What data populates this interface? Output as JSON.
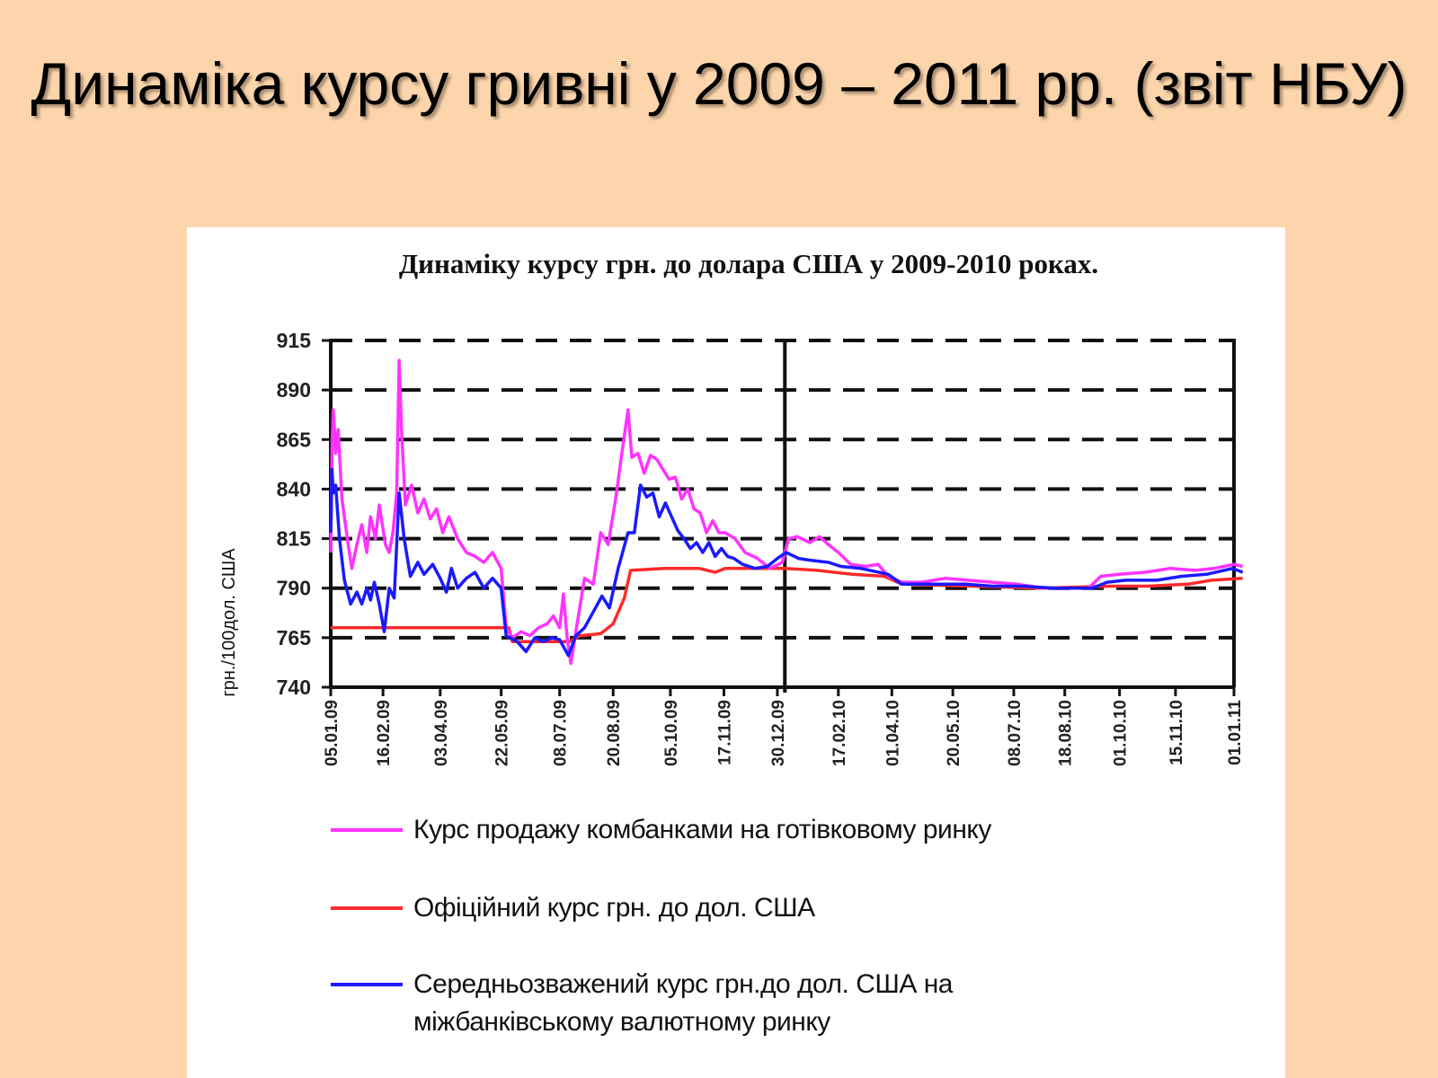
{
  "slide": {
    "title": "Динаміка курсу гривні у 2009 – 2011 рр. (звіт НБУ)"
  },
  "colors": {
    "background": "#fdd5ac",
    "panel": "#ffffff",
    "cash": "#ff33ff",
    "official": "#ff2a2a",
    "interbank": "#1a1aff"
  },
  "chart_data": {
    "type": "line",
    "title": "Динаміку курсу грн. до долара США у 2009-2010 роках.",
    "ylabel": "грн./100дол. США",
    "xlabel": "",
    "ylim": [
      740,
      915
    ],
    "yticks": [
      740,
      765,
      790,
      815,
      840,
      865,
      890,
      915
    ],
    "x_tick_labels": [
      "05.01.09",
      "16.02.09",
      "03.04.09",
      "22.05.09",
      "08.07.09",
      "20.08.09",
      "05.10.09",
      "17.11.09",
      "30.12.09",
      "17.02.10",
      "01.04.10",
      "20.05.10",
      "08.07.10",
      "18.08.10",
      "01.10.10",
      "15.11.10",
      "01.01.11"
    ],
    "grid": "horizontal dashed",
    "legend_position": "bottom",
    "series": [
      {
        "name": "Курс продажу комбанками на готівковому ринку",
        "color": "#ff33ff",
        "values": [
          [
            "05.01.09",
            808
          ],
          [
            "06.01.09",
            860
          ],
          [
            "07.01.09",
            880
          ],
          [
            "09.01.09",
            858
          ],
          [
            "11.01.09",
            870
          ],
          [
            "14.01.09",
            835
          ],
          [
            "19.01.09",
            812
          ],
          [
            "22.01.09",
            800
          ],
          [
            "26.01.09",
            812
          ],
          [
            "30.01.09",
            822
          ],
          [
            "03.02.09",
            808
          ],
          [
            "06.02.09",
            826
          ],
          [
            "10.02.09",
            815
          ],
          [
            "13.02.09",
            832
          ],
          [
            "16.02.09",
            820
          ],
          [
            "18.02.09",
            812
          ],
          [
            "21.02.09",
            808
          ],
          [
            "24.02.09",
            818
          ],
          [
            "27.02.09",
            838
          ],
          [
            "01.03.09",
            905
          ],
          [
            "03.03.09",
            868
          ],
          [
            "06.03.09",
            832
          ],
          [
            "11.03.09",
            842
          ],
          [
            "16.03.09",
            828
          ],
          [
            "21.03.09",
            835
          ],
          [
            "26.03.09",
            825
          ],
          [
            "31.03.09",
            830
          ],
          [
            "05.04.09",
            818
          ],
          [
            "10.04.09",
            826
          ],
          [
            "17.04.09",
            815
          ],
          [
            "24.04.09",
            808
          ],
          [
            "01.05.09",
            806
          ],
          [
            "08.05.09",
            803
          ],
          [
            "15.05.09",
            808
          ],
          [
            "22.05.09",
            800
          ],
          [
            "26.05.09",
            770
          ],
          [
            "31.05.09",
            765
          ],
          [
            "07.06.09",
            768
          ],
          [
            "14.06.09",
            766
          ],
          [
            "21.06.09",
            770
          ],
          [
            "28.06.09",
            772
          ],
          [
            "03.07.09",
            776
          ],
          [
            "08.07.09",
            770
          ],
          [
            "11.07.09",
            787
          ],
          [
            "14.07.09",
            765
          ],
          [
            "17.07.09",
            752
          ],
          [
            "21.07.09",
            768
          ],
          [
            "28.07.09",
            795
          ],
          [
            "04.08.09",
            792
          ],
          [
            "10.08.09",
            818
          ],
          [
            "16.08.09",
            812
          ],
          [
            "22.08.09",
            835
          ],
          [
            "27.08.09",
            858
          ],
          [
            "01.09.09",
            880
          ],
          [
            "04.09.09",
            856
          ],
          [
            "09.09.09",
            858
          ],
          [
            "14.09.09",
            848
          ],
          [
            "19.09.09",
            857
          ],
          [
            "24.09.09",
            855
          ],
          [
            "29.09.09",
            850
          ],
          [
            "04.10.09",
            845
          ],
          [
            "09.10.09",
            846
          ],
          [
            "14.10.09",
            835
          ],
          [
            "19.10.09",
            840
          ],
          [
            "24.10.09",
            830
          ],
          [
            "29.10.09",
            828
          ],
          [
            "03.11.09",
            818
          ],
          [
            "08.11.09",
            824
          ],
          [
            "13.11.09",
            818
          ],
          [
            "18.11.09",
            818
          ],
          [
            "26.11.09",
            815
          ],
          [
            "04.12.09",
            808
          ],
          [
            "14.12.09",
            805
          ],
          [
            "24.12.09",
            800
          ],
          [
            "03.01.10",
            803
          ],
          [
            "08.01.10",
            815
          ],
          [
            "15.01.10",
            816
          ],
          [
            "25.01.10",
            813
          ],
          [
            "02.02.10",
            816
          ],
          [
            "09.02.10",
            812
          ],
          [
            "17.02.10",
            808
          ],
          [
            "27.02.10",
            802
          ],
          [
            "11.03.10",
            801
          ],
          [
            "21.03.10",
            802
          ],
          [
            "29.03.10",
            796
          ],
          [
            "09.04.10",
            793
          ],
          [
            "25.04.10",
            793
          ],
          [
            "14.05.10",
            795
          ],
          [
            "01.06.10",
            794
          ],
          [
            "21.06.10",
            793
          ],
          [
            "11.07.10",
            792
          ],
          [
            "01.08.10",
            790
          ],
          [
            "22.08.10",
            790
          ],
          [
            "06.09.10",
            790
          ],
          [
            "16.09.10",
            796
          ],
          [
            "01.10.10",
            797
          ],
          [
            "21.10.10",
            798
          ],
          [
            "11.11.10",
            800
          ],
          [
            "01.12.10",
            799
          ],
          [
            "16.12.10",
            800
          ],
          [
            "01.01.11",
            802
          ],
          [
            "08.01.11",
            801
          ]
        ]
      },
      {
        "name": "Офіційний курс грн. до дол. США",
        "color": "#ff2a2a",
        "values": [
          [
            "05.01.09",
            770
          ],
          [
            "28.05.09",
            770
          ],
          [
            "31.05.09",
            763
          ],
          [
            "16.07.09",
            763
          ],
          [
            "24.07.09",
            766
          ],
          [
            "10.08.09",
            767
          ],
          [
            "20.08.09",
            772
          ],
          [
            "29.08.09",
            785
          ],
          [
            "03.09.09",
            799
          ],
          [
            "30.09.09",
            800
          ],
          [
            "28.10.09",
            800
          ],
          [
            "10.11.09",
            798
          ],
          [
            "18.11.09",
            800
          ],
          [
            "23.12.09",
            800
          ],
          [
            "05.01.10",
            800
          ],
          [
            "31.01.10",
            799
          ],
          [
            "28.02.10",
            797
          ],
          [
            "26.03.10",
            796
          ],
          [
            "09.04.10",
            792
          ],
          [
            "05.06.10",
            791
          ],
          [
            "29.07.10",
            790
          ],
          [
            "24.09.10",
            791
          ],
          [
            "23.10.10",
            791
          ],
          [
            "25.11.10",
            792
          ],
          [
            "14.12.10",
            794
          ],
          [
            "08.01.11",
            795
          ]
        ]
      },
      {
        "name": "Середньозважений курс грн.до  дол. США на міжбанківському валютному ринку",
        "color": "#1a1aff",
        "values": [
          [
            "05.01.09",
            818
          ],
          [
            "06.01.09",
            850
          ],
          [
            "07.01.09",
            838
          ],
          [
            "09.01.09",
            842
          ],
          [
            "12.01.09",
            815
          ],
          [
            "16.01.09",
            794
          ],
          [
            "21.01.09",
            782
          ],
          [
            "26.01.09",
            788
          ],
          [
            "30.01.09",
            782
          ],
          [
            "03.02.09",
            790
          ],
          [
            "06.02.09",
            784
          ],
          [
            "09.02.09",
            793
          ],
          [
            "13.02.09",
            782
          ],
          [
            "17.02.09",
            768
          ],
          [
            "21.02.09",
            790
          ],
          [
            "25.02.09",
            785
          ],
          [
            "01.03.09",
            838
          ],
          [
            "05.03.09",
            815
          ],
          [
            "10.03.09",
            796
          ],
          [
            "16.03.09",
            803
          ],
          [
            "21.03.09",
            797
          ],
          [
            "28.03.09",
            802
          ],
          [
            "03.04.09",
            795
          ],
          [
            "08.04.09",
            788
          ],
          [
            "12.04.09",
            800
          ],
          [
            "17.04.09",
            790
          ],
          [
            "24.04.09",
            795
          ],
          [
            "01.05.09",
            798
          ],
          [
            "08.05.09",
            790
          ],
          [
            "15.05.09",
            795
          ],
          [
            "22.05.09",
            790
          ],
          [
            "26.05.09",
            766
          ],
          [
            "04.06.09",
            763
          ],
          [
            "11.06.09",
            758
          ],
          [
            "18.06.09",
            765
          ],
          [
            "25.06.09",
            763
          ],
          [
            "02.07.09",
            765
          ],
          [
            "08.07.09",
            764
          ],
          [
            "15.07.09",
            756
          ],
          [
            "21.07.09",
            766
          ],
          [
            "28.07.09",
            770
          ],
          [
            "04.08.09",
            778
          ],
          [
            "11.08.09",
            786
          ],
          [
            "17.08.09",
            780
          ],
          [
            "24.08.09",
            800
          ],
          [
            "01.09.09",
            818
          ],
          [
            "06.09.09",
            818
          ],
          [
            "11.09.09",
            842
          ],
          [
            "16.09.09",
            836
          ],
          [
            "21.09.09",
            838
          ],
          [
            "26.09.09",
            826
          ],
          [
            "01.10.09",
            833
          ],
          [
            "06.10.09",
            826
          ],
          [
            "11.10.09",
            819
          ],
          [
            "16.10.09",
            815
          ],
          [
            "21.10.09",
            810
          ],
          [
            "26.10.09",
            813
          ],
          [
            "31.10.09",
            808
          ],
          [
            "05.11.09",
            813
          ],
          [
            "10.11.09",
            806
          ],
          [
            "15.11.09",
            810
          ],
          [
            "20.11.09",
            806
          ],
          [
            "25.11.09",
            805
          ],
          [
            "02.12.09",
            802
          ],
          [
            "12.12.09",
            800
          ],
          [
            "22.12.09",
            801
          ],
          [
            "30.12.09",
            805
          ],
          [
            "06.01.10",
            808
          ],
          [
            "16.01.10",
            805
          ],
          [
            "26.01.10",
            804
          ],
          [
            "09.02.10",
            803
          ],
          [
            "19.02.10",
            801
          ],
          [
            "07.03.10",
            800
          ],
          [
            "29.03.10",
            797
          ],
          [
            "09.04.10",
            792
          ],
          [
            "06.05.10",
            792
          ],
          [
            "30.05.10",
            792
          ],
          [
            "21.06.10",
            791
          ],
          [
            "15.07.10",
            791
          ],
          [
            "10.08.10",
            790
          ],
          [
            "09.09.10",
            790
          ],
          [
            "21.09.10",
            793
          ],
          [
            "06.10.10",
            794
          ],
          [
            "31.10.10",
            794
          ],
          [
            "20.11.10",
            796
          ],
          [
            "10.12.10",
            797
          ],
          [
            "31.12.10",
            800
          ],
          [
            "08.01.11",
            798
          ]
        ]
      }
    ]
  }
}
